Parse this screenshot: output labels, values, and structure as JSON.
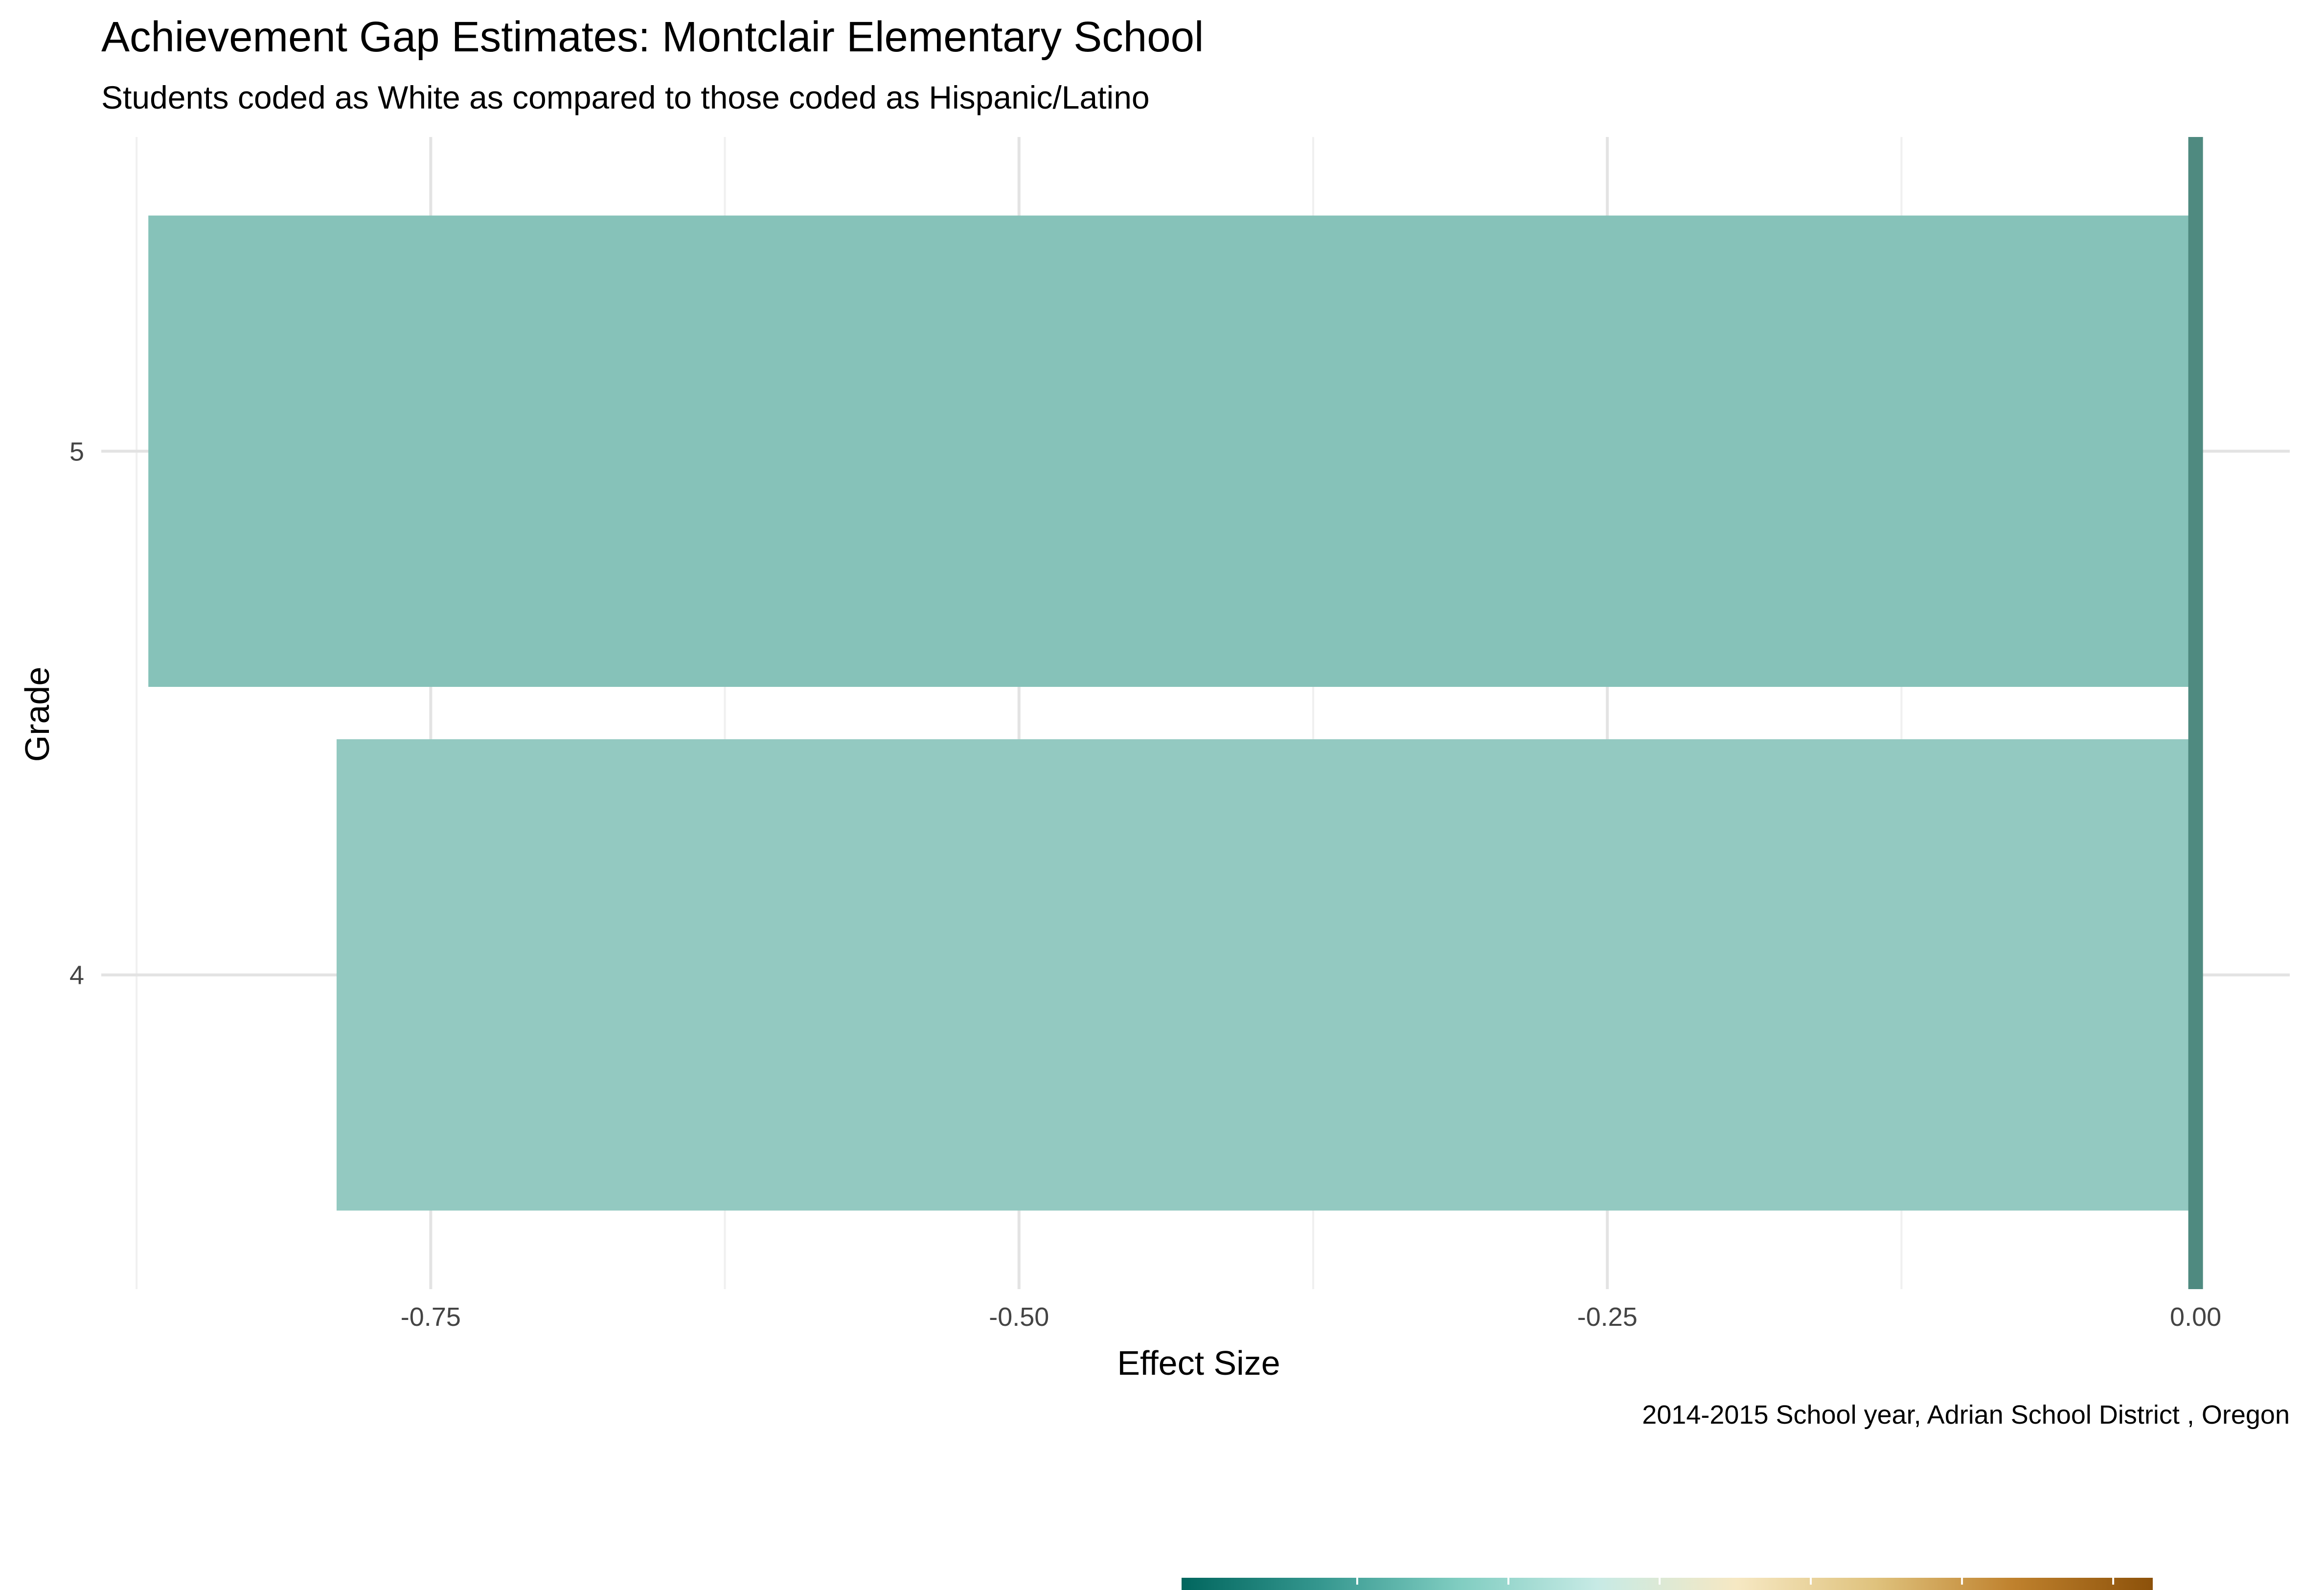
{
  "chart_data": {
    "type": "bar",
    "orientation": "horizontal",
    "title": "Achievement Gap Estimates: Montclair Elementary School",
    "subtitle": "Students coded as White as compared to those coded as Hispanic/Latino",
    "xlabel": "Effect Size",
    "ylabel": "Grade",
    "caption": "2014-2015 School year,  Adrian School District , Oregon",
    "categories": [
      "4",
      "5"
    ],
    "values": [
      -0.79,
      -0.87
    ],
    "bar_colors": [
      "#93c9c1",
      "#86c2b9"
    ],
    "reference_line": {
      "x": 0.0,
      "color": "#4f8a80"
    },
    "xlim": [
      -0.89,
      0.04
    ],
    "x_ticks": [
      {
        "value": -0.75,
        "label": "-0.75"
      },
      {
        "value": -0.5,
        "label": "-0.50"
      },
      {
        "value": -0.25,
        "label": "-0.25"
      },
      {
        "value": 0.0,
        "label": "0.00"
      }
    ],
    "x_minor_ticks": [
      -0.875,
      -0.625,
      -0.375,
      -0.125
    ],
    "grid": true,
    "legend": {
      "type": "colorbar",
      "placement": "bottom",
      "gradient": [
        "#01665e",
        "#35978f",
        "#80cdc1",
        "#c7eae5",
        "#f6e8c3",
        "#dfc27d",
        "#bf812d",
        "#8c510a"
      ]
    }
  }
}
